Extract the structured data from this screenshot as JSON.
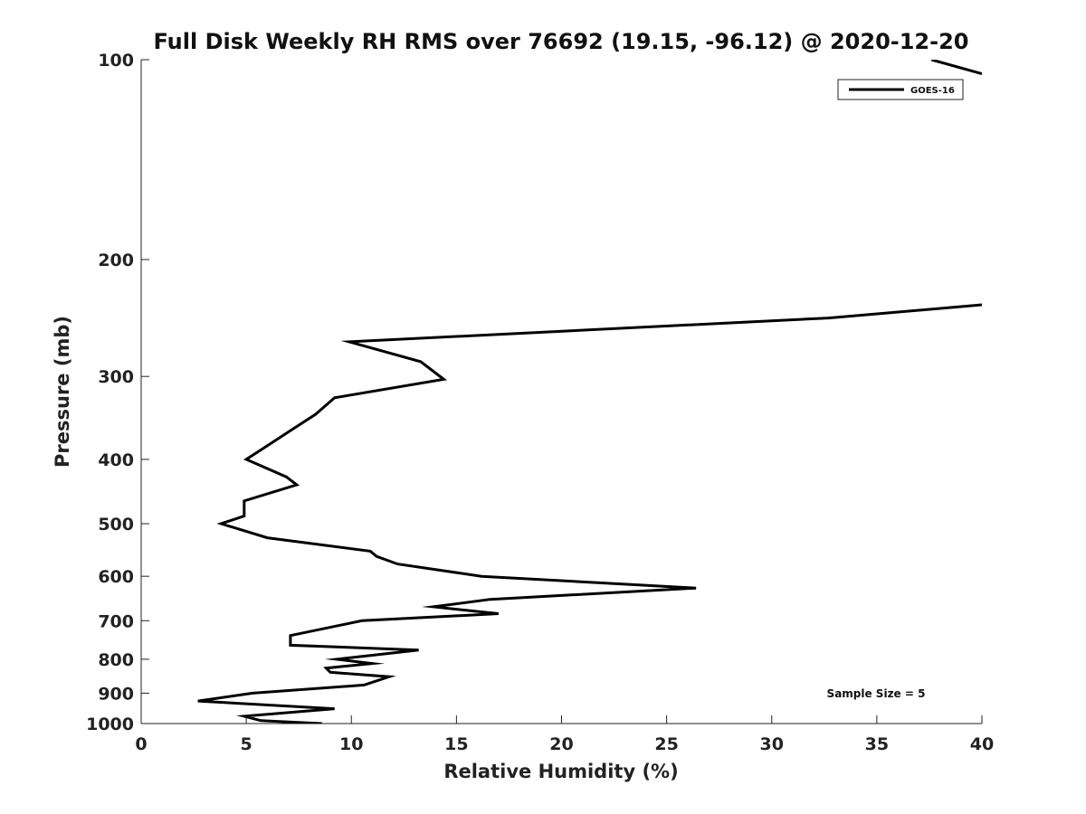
{
  "chart_data": {
    "type": "line",
    "title": "Full Disk Weekly RH RMS over 76692 (19.15, -96.12) @ 2020-12-20",
    "xlabel": "Relative Humidity (%)",
    "ylabel": "Pressure (mb)",
    "xlim": [
      0,
      40
    ],
    "ylim": [
      1000,
      100
    ],
    "y_scale": "log",
    "x_ticks": [
      0,
      5,
      10,
      15,
      20,
      25,
      30,
      35,
      40
    ],
    "y_ticks": [
      100,
      200,
      300,
      400,
      500,
      600,
      700,
      800,
      900,
      1000
    ],
    "grid": false,
    "legend_position": "top-right",
    "annotation": "Sample Size = 5",
    "series": [
      {
        "name": "GOES-16",
        "color": "#000000",
        "x": [
          8.6,
          5.7,
          4.9,
          9.2,
          2.7,
          5.3,
          10.6,
          11.8,
          9.0,
          8.8,
          11.0,
          9.3,
          13.2,
          7.1,
          7.1,
          10.5,
          17.0,
          13.9,
          16.6,
          26.4,
          16.2,
          12.2,
          11.2,
          10.9,
          6.0,
          3.8,
          4.9,
          4.9,
          7.4,
          6.9,
          5.0,
          5.7,
          7.1,
          8.3,
          9.2,
          14.4,
          13.3,
          9.9,
          32.7,
          40.0
        ],
        "y": [
          1000,
          990,
          975,
          950,
          925,
          900,
          875,
          850,
          837,
          825,
          812,
          800,
          775,
          762,
          737,
          700,
          683,
          667,
          650,
          625,
          600,
          575,
          560,
          550,
          525,
          500,
          487,
          462,
          437,
          425,
          400,
          387,
          362,
          342,
          323,
          303,
          285,
          266,
          245,
          234
        ]
      },
      {
        "name": "",
        "color": "#000000",
        "x": [
          37.6,
          40.0
        ],
        "y": [
          100,
          105
        ]
      }
    ]
  }
}
